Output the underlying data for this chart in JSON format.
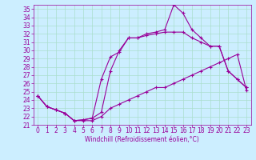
{
  "title": "",
  "xlabel": "Windchill (Refroidissement éolien,°C)",
  "bg_color": "#cceeff",
  "line_color": "#990099",
  "xlim": [
    -0.5,
    23.5
  ],
  "ylim": [
    21,
    35.5
  ],
  "yticks": [
    21,
    22,
    23,
    24,
    25,
    26,
    27,
    28,
    29,
    30,
    31,
    32,
    33,
    34,
    35
  ],
  "xticks": [
    0,
    1,
    2,
    3,
    4,
    5,
    6,
    7,
    8,
    9,
    10,
    11,
    12,
    13,
    14,
    15,
    16,
    17,
    18,
    19,
    20,
    21,
    22,
    23
  ],
  "line1_x": [
    0,
    1,
    2,
    3,
    4,
    5,
    6,
    7,
    8,
    9,
    10,
    11,
    12,
    13,
    14,
    15,
    16,
    17,
    18,
    19,
    20,
    21,
    22,
    23
  ],
  "line1_y": [
    24.5,
    23.2,
    22.8,
    22.4,
    21.5,
    21.5,
    21.5,
    22.0,
    23.0,
    23.5,
    24.0,
    24.5,
    25.0,
    25.5,
    25.5,
    26.0,
    26.5,
    27.0,
    27.5,
    28.0,
    28.5,
    29.0,
    29.5,
    25.2
  ],
  "line2_x": [
    0,
    1,
    2,
    3,
    4,
    5,
    6,
    7,
    8,
    9,
    10,
    11,
    12,
    13,
    14,
    15,
    16,
    17,
    18,
    19,
    20,
    21,
    22,
    23
  ],
  "line2_y": [
    24.5,
    23.2,
    22.8,
    22.4,
    21.5,
    21.6,
    21.8,
    26.5,
    29.2,
    29.8,
    31.5,
    31.5,
    31.8,
    32.0,
    32.2,
    32.2,
    32.2,
    31.5,
    31.0,
    30.5,
    30.5,
    27.5,
    26.5,
    25.5
  ],
  "line3_x": [
    0,
    1,
    2,
    3,
    4,
    5,
    6,
    7,
    8,
    9,
    10,
    11,
    12,
    13,
    14,
    15,
    16,
    17,
    18,
    19,
    20,
    21,
    22,
    23
  ],
  "line3_y": [
    24.5,
    23.2,
    22.8,
    22.4,
    21.5,
    21.6,
    21.8,
    22.5,
    27.5,
    30.0,
    31.5,
    31.5,
    32.0,
    32.2,
    32.5,
    35.5,
    34.5,
    32.5,
    31.5,
    30.5,
    30.5,
    27.5,
    26.5,
    25.5
  ],
  "marker": "+",
  "markersize": 3,
  "linewidth": 0.8,
  "font_size": 5.5,
  "grid_color": "#aaddcc"
}
